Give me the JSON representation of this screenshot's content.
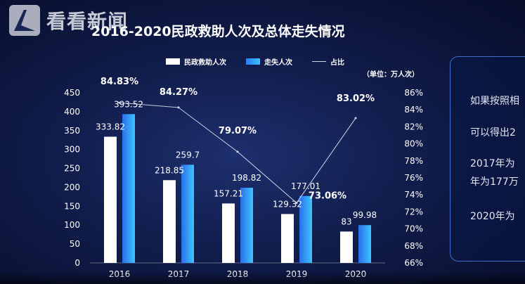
{
  "watermark": {
    "text": "看看新闻"
  },
  "chart_data": {
    "type": "bar",
    "title": "2016-2020民政救助人次及总体走失情况",
    "unit_note": "（单位：万人次）",
    "categories": [
      "2016",
      "2017",
      "2018",
      "2019",
      "2020"
    ],
    "series": [
      {
        "name": "民政救助人次",
        "values": [
          333.82,
          218.85,
          157.21,
          129.32,
          83
        ],
        "color": "#ffffff"
      },
      {
        "name": "走失人次",
        "values": [
          393.52,
          259.7,
          198.82,
          177.01,
          99.98
        ],
        "color": "#2f8fff"
      }
    ],
    "line_series": {
      "name": "占比",
      "values": [
        84.83,
        84.27,
        79.07,
        73.06,
        83.02
      ],
      "labels": [
        "84.83%",
        "84.27%",
        "79.07%",
        "73.06%",
        "83.02%"
      ],
      "color": "#cfd6e8"
    },
    "y_left": {
      "ylim": [
        0,
        450
      ],
      "ticks": [
        "0",
        "50",
        "100",
        "150",
        "200",
        "250",
        "300",
        "350",
        "400",
        "450"
      ]
    },
    "y_right": {
      "ylim": [
        66,
        86
      ],
      "ticks": [
        "66%",
        "68%",
        "70%",
        "72%",
        "74%",
        "76%",
        "78%",
        "80%",
        "82%",
        "84%",
        "86%"
      ]
    },
    "grid": false,
    "legend_position": "top-center"
  },
  "side_panel": {
    "lines": [
      "如果按照相",
      "可以得出2",
      "2017年为",
      "年为177万",
      "2020年为"
    ]
  }
}
